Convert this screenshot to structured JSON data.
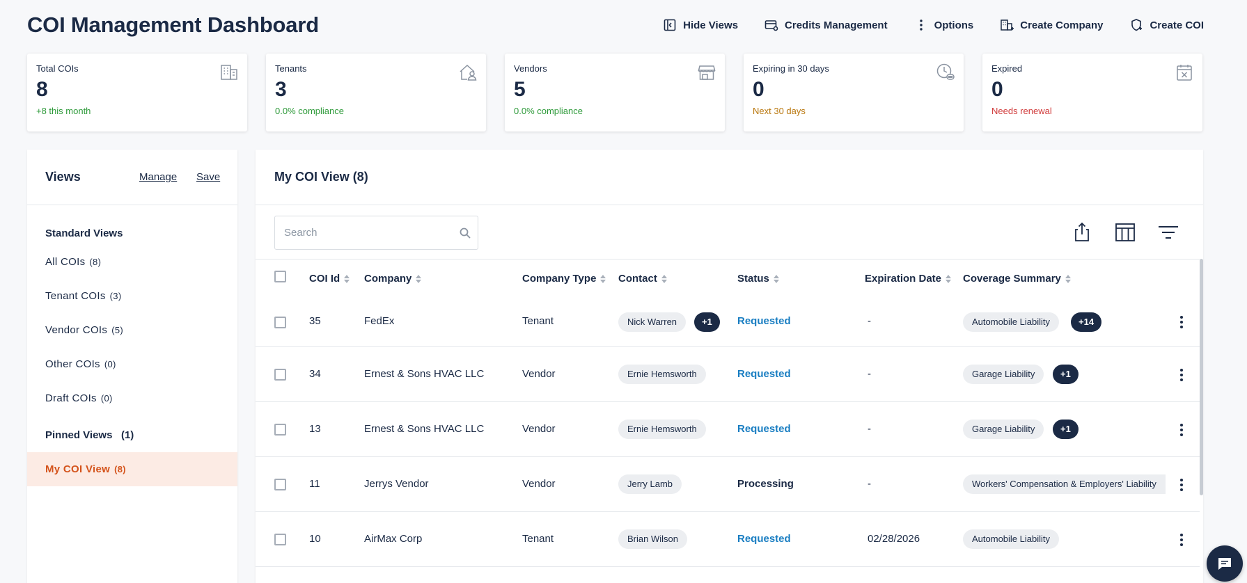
{
  "header": {
    "title": "COI Management Dashboard",
    "actions": [
      {
        "label": "Hide Views",
        "icon": "sidebar-toggle-icon"
      },
      {
        "label": "Credits Management",
        "icon": "credit-card-icon"
      },
      {
        "label": "Options",
        "icon": "more-vertical-icon"
      },
      {
        "label": "Create Company",
        "icon": "building-add-icon"
      },
      {
        "label": "Create COI",
        "icon": "shield-add-icon"
      }
    ]
  },
  "stats": [
    {
      "label": "Total COIs",
      "value": "8",
      "sub": "+8 this month",
      "sub_color": "#2e9a3a",
      "icon": "building-icon"
    },
    {
      "label": "Tenants",
      "value": "3",
      "sub": "0.0% compliance",
      "sub_color": "#2e9a3a",
      "icon": "home-user-icon"
    },
    {
      "label": "Vendors",
      "value": "5",
      "sub": "0.0% compliance",
      "sub_color": "#2e9a3a",
      "icon": "storefront-icon"
    },
    {
      "label": "Expiring in 30 days",
      "value": "0",
      "sub": "Next 30 days",
      "sub_color": "#b9770e",
      "icon": "clock-icon"
    },
    {
      "label": "Expired",
      "value": "0",
      "sub": "Needs renewal",
      "sub_color": "#d03a3a",
      "icon": "calendar-x-icon"
    }
  ],
  "views": {
    "title": "Views",
    "manage_label": "Manage",
    "save_label": "Save",
    "standard_title": "Standard Views",
    "standard": [
      {
        "label": "All COIs",
        "count": "(8)"
      },
      {
        "label": "Tenant COIs",
        "count": "(3)"
      },
      {
        "label": "Vendor COIs",
        "count": "(5)"
      },
      {
        "label": "Other COIs",
        "count": "(0)"
      },
      {
        "label": "Draft COIs",
        "count": "(0)"
      }
    ],
    "pinned_title": "Pinned Views",
    "pinned_count": "(1)",
    "pinned": [
      {
        "label": "My COI View",
        "count": "(8)"
      }
    ]
  },
  "main": {
    "title": "My COI View (8)",
    "search_placeholder": "Search",
    "columns": [
      "COI Id",
      "Company",
      "Company Type",
      "Contact",
      "Status",
      "Expiration Date",
      "Coverage Summary"
    ],
    "rows": [
      {
        "id": "35",
        "company": "FedEx",
        "type": "Tenant",
        "contact": "Nick Warren",
        "contact_extra": "+1",
        "status": "Requested",
        "expiration": "-",
        "coverage": "Automobile Liability",
        "coverage_extra": "+14"
      },
      {
        "id": "34",
        "company": "Ernest & Sons HVAC LLC",
        "type": "Vendor",
        "contact": "Ernie Hemsworth",
        "contact_extra": "",
        "status": "Requested",
        "expiration": "-",
        "coverage": "Garage Liability",
        "coverage_extra": "+1"
      },
      {
        "id": "13",
        "company": "Ernest & Sons HVAC LLC",
        "type": "Vendor",
        "contact": "Ernie Hemsworth",
        "contact_extra": "",
        "status": "Requested",
        "expiration": "-",
        "coverage": "Garage Liability",
        "coverage_extra": "+1"
      },
      {
        "id": "11",
        "company": "Jerrys Vendor",
        "type": "Vendor",
        "contact": "Jerry Lamb",
        "contact_extra": "",
        "status": "Processing",
        "expiration": "-",
        "coverage": "Workers' Compensation & Employers' Liability",
        "coverage_extra": ""
      },
      {
        "id": "10",
        "company": "AirMax Corp",
        "type": "Tenant",
        "contact": "Brian Wilson",
        "contact_extra": "",
        "status": "Requested",
        "expiration": "02/28/2026",
        "coverage": "Automobile Liability",
        "coverage_extra": ""
      }
    ]
  },
  "colors": {
    "status_requested": "#1a7ec2",
    "status_processing": "#1b2a45",
    "active_view": "#d4531b"
  }
}
